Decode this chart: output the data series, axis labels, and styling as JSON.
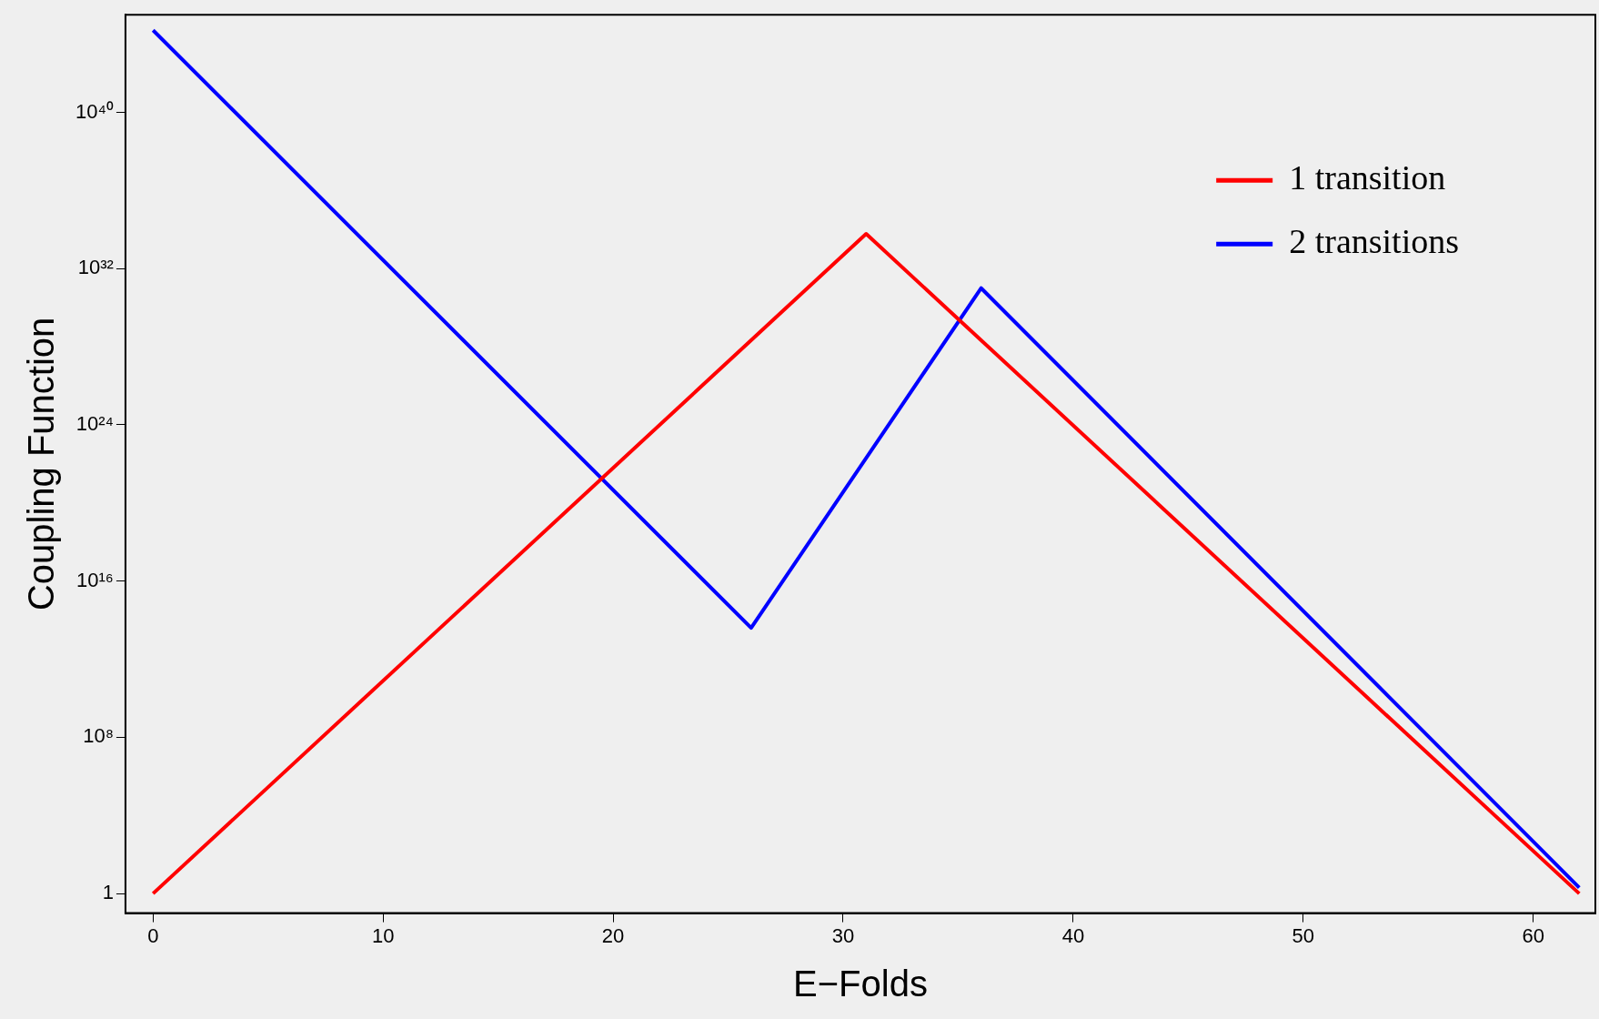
{
  "chart_data": {
    "type": "line",
    "xlabel": "E−Folds",
    "ylabel": "Coupling Function",
    "xlim": [
      -1.2,
      62.7
    ],
    "xticks": [
      0,
      10,
      20,
      30,
      40,
      50,
      60
    ],
    "ylim": [
      0.1,
      1e+45
    ],
    "yticks": [
      {
        "value": 1,
        "label": "1"
      },
      {
        "value": 100000000.0,
        "label": "10⁸"
      },
      {
        "value": 1e+16,
        "label": "10¹⁶"
      },
      {
        "value": 1e+24,
        "label": "10²⁴"
      },
      {
        "value": 1e+32,
        "label": "10³²"
      },
      {
        "value": 1e+40,
        "label": "10⁴⁰"
      }
    ],
    "log": "y",
    "grid": false,
    "legend": "top right",
    "marker": "none",
    "line_style": "solid",
    "series": [
      {
        "name": "1 transition",
        "color": "#ff0000",
        "x": [
          0,
          31,
          62
        ],
        "values": [
          1,
          6e+33,
          1
        ]
      },
      {
        "name": "2 transitions",
        "color": "#0000ff",
        "x": [
          0,
          26,
          36,
          62
        ],
        "values": [
          1.6e+44,
          40000000000000.0,
          1e+31,
          2
        ]
      }
    ]
  }
}
